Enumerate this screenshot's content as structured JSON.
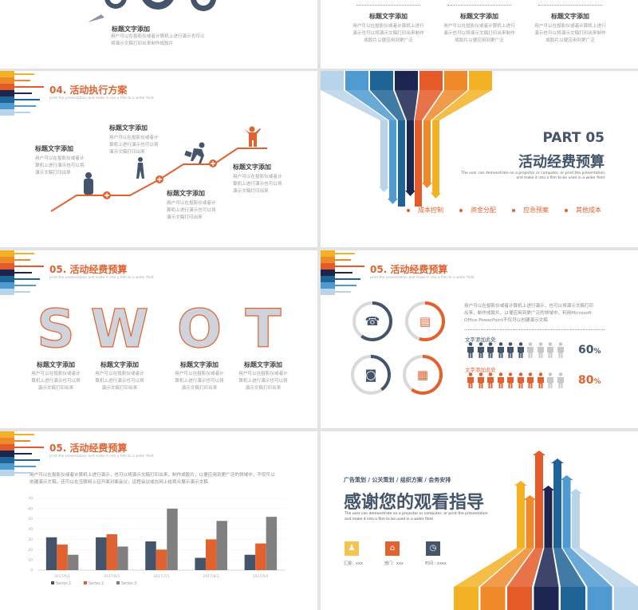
{
  "palette": {
    "navy": "#44546a",
    "orange": "#e2622f",
    "gray": "#808080",
    "light_gray": "#cfcfcf",
    "funnel": [
      "#b8d4ea",
      "#4f9ad0",
      "#1f6497",
      "#1b2550",
      "#e45a28",
      "#ee8a2a",
      "#f2b224"
    ]
  },
  "slide_top_left": {
    "title": "标题文字添加",
    "lines": [
      "用户可以在投影仪或者计算机上进行演示也可以",
      "将演示文稿打印出来制作成胶片"
    ],
    "icons": [
      "gear-icon",
      "rocket-icon"
    ]
  },
  "slide_top_right": {
    "columns": [
      {
        "title": "标题文字添加",
        "lines": [
          "用户可以在投影仪或者计算机上进行",
          "演示也可以将演示文稿打印出来制作",
          "成胶片以便应用到更广泛"
        ]
      },
      {
        "title": "标题文字添加",
        "lines": [
          "用户可以在投影仪或者计算机上进行",
          "演示也可以将演示文稿打印出来制作",
          "成胶片以便应用到更广泛"
        ]
      },
      {
        "title": "标题文字添加",
        "lines": [
          "用户可以在投影仪或者计算机上进行",
          "演示也可以将演示文稿打印出来制作",
          "成胶片以便应用到更广泛"
        ]
      }
    ]
  },
  "slide_execution": {
    "title": "04. 活动执行方案",
    "subtitle": "print the presentation and make it into a film to a wider field",
    "steps": [
      {
        "title": "标题文字添加",
        "lines": [
          "用户可以在投影仪或者计",
          "算机上进行演示也可以将",
          "演示文稿打印出来"
        ]
      },
      {
        "title": "标题文字添加",
        "lines": [
          "用户可以在投影仪或者计",
          "算机上进行演示也可以将",
          "演示文稿打印出来"
        ]
      },
      {
        "title": "标题文字添加",
        "lines": [
          "用户可以在投影仪或者计",
          "算机上进行演示也可以将",
          "演示文稿打印出来"
        ]
      },
      {
        "title": "标题文字添加",
        "lines": [
          "用户可以在投影仪或者计",
          "算机上进行演示也可以将",
          "演示文稿打印出来"
        ]
      }
    ]
  },
  "slide_part05": {
    "part": "PART 05",
    "title": "活动经费预算",
    "desc": [
      "The user can demonstrate on a projector or computer, or print the presentation",
      "and make it into a film to be used in a wider field"
    ],
    "bullets": [
      "成本控制",
      "资金分配",
      "应急预案",
      "其他成本"
    ]
  },
  "slide_swot": {
    "title": "05. 活动经费预算",
    "subtitle": "print the presentation and make it into a film to a wider field",
    "letters": [
      "S",
      "W",
      "O",
      "T"
    ],
    "items": [
      {
        "title": "标题文字添加",
        "lines": [
          "用户可以在投影仪或者计",
          "算机上进行演示也可以将",
          "演示文稿打印出来"
        ]
      },
      {
        "title": "标题文字添加",
        "lines": [
          "用户可以在投影仪或者计",
          "算机上进行演示也可以将",
          "演示文稿打印出来"
        ]
      },
      {
        "title": "标题文字添加",
        "lines": [
          "用户可以在投影仪或者计",
          "算机上进行演示也可以将",
          "演示文稿打印出来"
        ]
      },
      {
        "title": "标题文字添加",
        "lines": [
          "用户可以在投影仪或者计",
          "算机上进行演示也可以将",
          "演示文稿打印出来"
        ]
      }
    ]
  },
  "slide_stats": {
    "title": "05. 活动经费预算",
    "subtitle": "print the presentation and make it into a film to a wider field",
    "rings": [
      {
        "icon": "phone-icon",
        "color": "navy",
        "progress": 0.6
      },
      {
        "icon": "floppy-disk-icon",
        "color": "orange",
        "progress": 0.55
      },
      {
        "icon": "video-camera-icon",
        "color": "navy",
        "progress": 0.4
      },
      {
        "icon": "radio-icon",
        "color": "orange",
        "progress": 0.6
      }
    ],
    "desc": [
      "用户可以在投影仪或者计算机上进行演示，也可以将演示文稿打印",
      "出来，制作成胶片，以便应用到更广泛的领域中，利用Microsoft",
      "Office PowerPoint不仅可以创建演示文稿"
    ],
    "rows": [
      {
        "label": "文字添加此处",
        "value": "60",
        "unit": "%",
        "filled": 6,
        "total": 10,
        "color": "navy"
      },
      {
        "label": "文字添加此处",
        "value": "80",
        "unit": "%",
        "filled": 8,
        "total": 10,
        "color": "orange"
      }
    ]
  },
  "slide_chart": {
    "title": "05. 活动经费预算",
    "subtitle": "print the presentation and make it into a film to a wider field",
    "desc": [
      "用户可以在投影仪或者计算机上进行演示，也可以将演示文稿打印出来，制作成胶片，以便应用到更广泛的领域中，不仅可以",
      "创建演示文稿，还可以在互联网上召开面对面会议，远程会议或在网上给观众展示演示文稿"
    ]
  },
  "chart_data": {
    "type": "bar",
    "categories": [
      "2017/5/1",
      "2017/6/1",
      "2017/7/1",
      "2017/8/1",
      "2017/9/1"
    ],
    "series": [
      {
        "name": "Series 1",
        "color": "#44546a",
        "values": [
          32,
          32,
          28,
          12,
          15
        ]
      },
      {
        "name": "Series 2",
        "color": "#e2622f",
        "values": [
          25,
          35,
          20,
          30,
          26
        ]
      },
      {
        "name": "Series 3",
        "color": "#808080",
        "values": [
          15,
          23,
          60,
          48,
          52
        ]
      }
    ],
    "ylim": [
      0,
      70
    ],
    "yticks": [
      "0",
      "10",
      "20",
      "30",
      "40",
      "50",
      "60",
      "70"
    ],
    "grid": true,
    "legend": "bottom-left"
  },
  "slide_thanks": {
    "tags": "广告策划 / 公关策划 / 组织方案 / 会务安排",
    "title": "感谢您的观看指导",
    "desc": [
      "The user can demonstrate on a projector or computer, or print the presentation",
      "and make it into a film to be used in a wider field"
    ],
    "meta": [
      {
        "icon": "user-icon",
        "color": "#f4c44e",
        "label": "汇报：xxx"
      },
      {
        "icon": "bank-icon",
        "color": "#e2622f",
        "label": "部门：xxx"
      },
      {
        "icon": "clock-icon",
        "color": "#44546a",
        "label": "时间：xxxx"
      }
    ]
  }
}
